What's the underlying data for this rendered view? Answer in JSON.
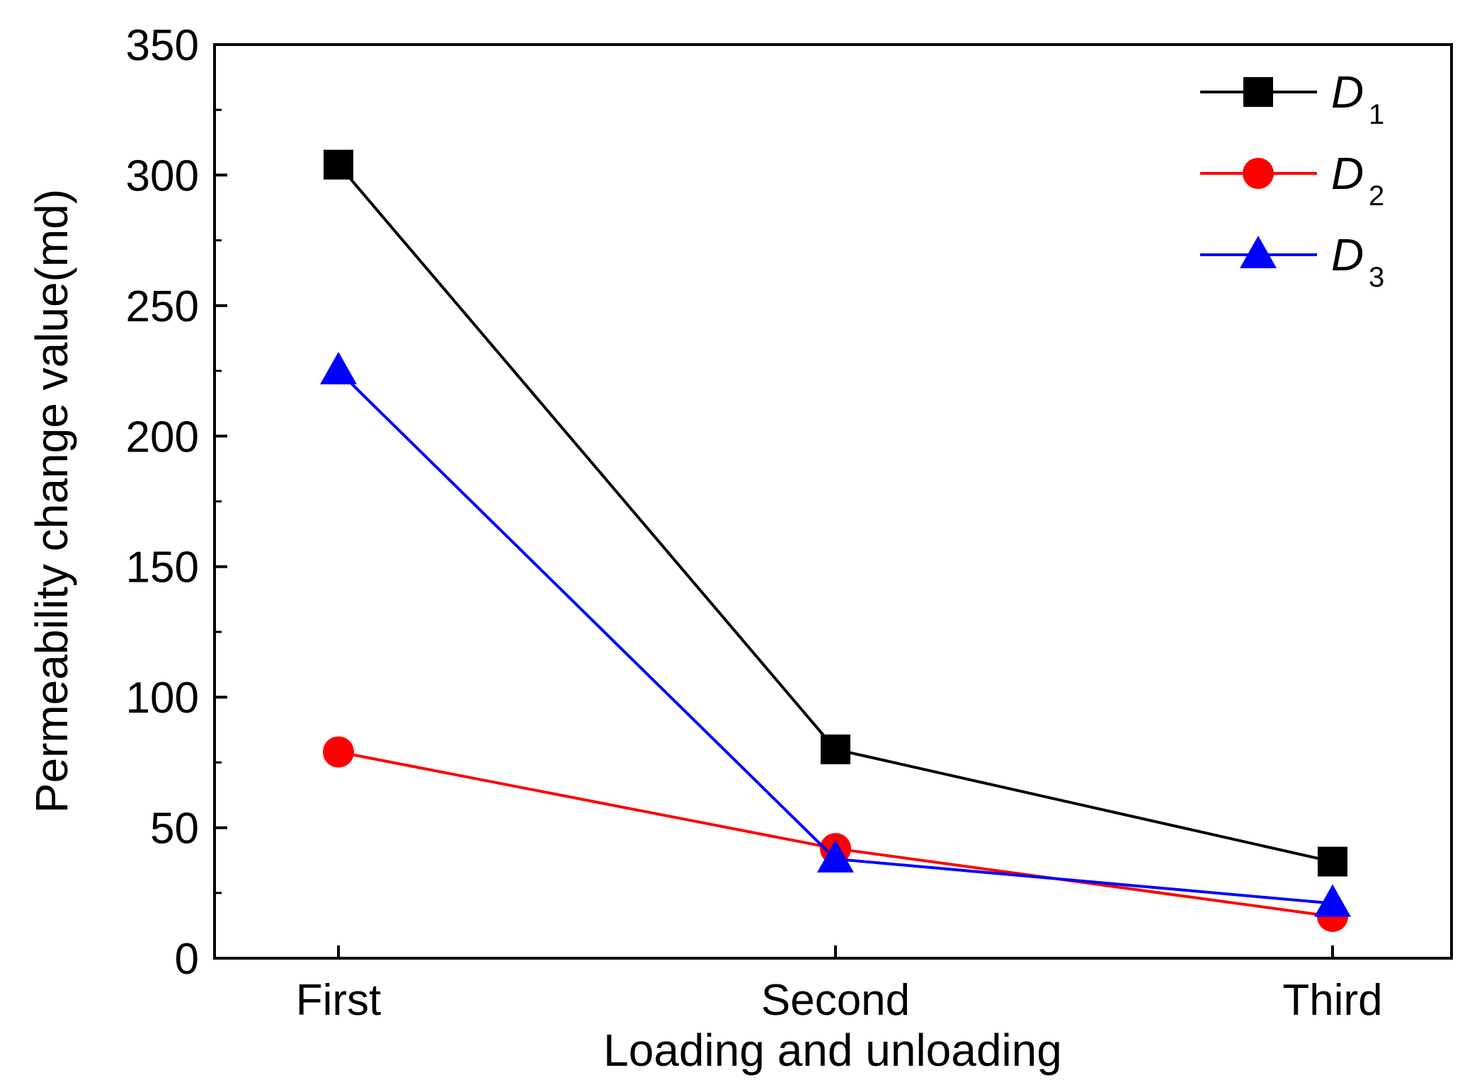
{
  "chart_data": {
    "type": "line",
    "categories": [
      "First",
      "Second",
      "Third"
    ],
    "xlabel": "Loading and unloading",
    "ylabel": "Permeability change value(md)",
    "ylim": [
      0,
      350
    ],
    "yticks": [
      0,
      50,
      100,
      150,
      200,
      250,
      300,
      350
    ],
    "grid": false,
    "legend_position": "top-right",
    "series": [
      {
        "name": "D",
        "subscript": "1",
        "color": "#000000",
        "marker": "square",
        "values": [
          304,
          80,
          37
        ]
      },
      {
        "name": "D",
        "subscript": "2",
        "color": "#ff0000",
        "marker": "circle",
        "values": [
          79,
          42,
          16
        ]
      },
      {
        "name": "D",
        "subscript": "3",
        "color": "#0000ff",
        "marker": "triangle",
        "values": [
          225,
          38,
          21
        ]
      }
    ]
  }
}
